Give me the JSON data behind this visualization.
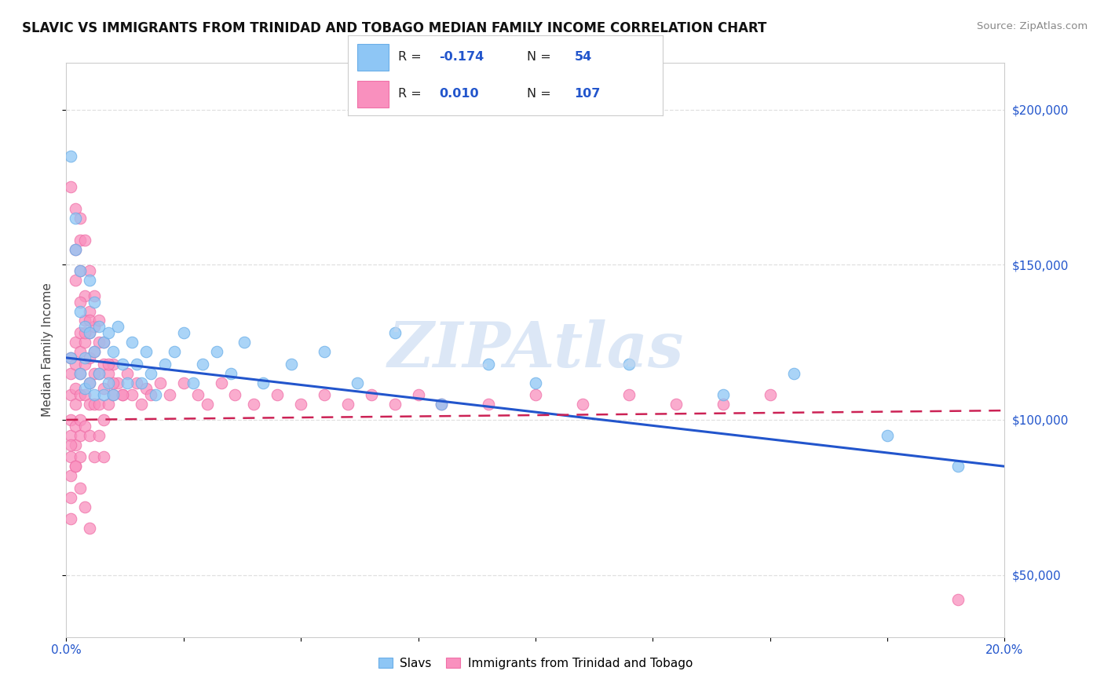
{
  "title": "SLAVIC VS IMMIGRANTS FROM TRINIDAD AND TOBAGO MEDIAN FAMILY INCOME CORRELATION CHART",
  "source": "Source: ZipAtlas.com",
  "ylabel": "Median Family Income",
  "xlim": [
    0.0,
    0.2
  ],
  "ylim": [
    30000,
    215000
  ],
  "xtick_positions": [
    0.0,
    0.025,
    0.05,
    0.075,
    0.1,
    0.125,
    0.15,
    0.175,
    0.2
  ],
  "xtick_labels_shown": {
    "0.0": "0.0%",
    "0.20": "20.0%"
  },
  "yticks": [
    50000,
    100000,
    150000,
    200000
  ],
  "ytick_labels": [
    "$50,000",
    "$100,000",
    "$150,000",
    "$200,000"
  ],
  "watermark": "ZIPAtlas",
  "legend_R1": "-0.174",
  "legend_N1": "54",
  "legend_R2": "0.010",
  "legend_N2": "107",
  "series1_name": "Slavs",
  "series2_name": "Immigrants from Trinidad and Tobago",
  "series1_color": "#8ec6f5",
  "series2_color": "#f990be",
  "series1_edge": "#6aaee8",
  "series2_edge": "#f070a8",
  "trend1_color": "#2255cc",
  "trend2_color": "#cc2255",
  "background_color": "#ffffff",
  "grid_color": "#dddddd",
  "watermark_color": "#c5d8f0",
  "slavs_x": [
    0.001,
    0.001,
    0.002,
    0.002,
    0.003,
    0.003,
    0.003,
    0.004,
    0.004,
    0.004,
    0.005,
    0.005,
    0.005,
    0.006,
    0.006,
    0.006,
    0.007,
    0.007,
    0.008,
    0.008,
    0.009,
    0.009,
    0.01,
    0.01,
    0.011,
    0.012,
    0.013,
    0.014,
    0.015,
    0.016,
    0.017,
    0.018,
    0.019,
    0.021,
    0.023,
    0.025,
    0.027,
    0.029,
    0.032,
    0.035,
    0.038,
    0.042,
    0.048,
    0.055,
    0.062,
    0.07,
    0.08,
    0.09,
    0.1,
    0.12,
    0.14,
    0.155,
    0.175,
    0.19
  ],
  "slavs_y": [
    185000,
    120000,
    165000,
    155000,
    148000,
    135000,
    115000,
    130000,
    120000,
    110000,
    145000,
    128000,
    112000,
    138000,
    122000,
    108000,
    130000,
    115000,
    125000,
    108000,
    128000,
    112000,
    122000,
    108000,
    130000,
    118000,
    112000,
    125000,
    118000,
    112000,
    122000,
    115000,
    108000,
    118000,
    122000,
    128000,
    112000,
    118000,
    122000,
    115000,
    125000,
    112000,
    118000,
    122000,
    112000,
    128000,
    105000,
    118000,
    112000,
    118000,
    108000,
    115000,
    95000,
    85000
  ],
  "trinidad_x": [
    0.001,
    0.001,
    0.001,
    0.001,
    0.001,
    0.001,
    0.001,
    0.001,
    0.001,
    0.002,
    0.002,
    0.002,
    0.002,
    0.002,
    0.002,
    0.002,
    0.003,
    0.003,
    0.003,
    0.003,
    0.003,
    0.003,
    0.003,
    0.004,
    0.004,
    0.004,
    0.004,
    0.004,
    0.005,
    0.005,
    0.005,
    0.005,
    0.005,
    0.005,
    0.006,
    0.006,
    0.006,
    0.006,
    0.007,
    0.007,
    0.007,
    0.008,
    0.008,
    0.008,
    0.009,
    0.009,
    0.01,
    0.01,
    0.011,
    0.012,
    0.013,
    0.014,
    0.015,
    0.016,
    0.017,
    0.018,
    0.02,
    0.022,
    0.025,
    0.028,
    0.03,
    0.033,
    0.036,
    0.04,
    0.045,
    0.05,
    0.055,
    0.06,
    0.065,
    0.07,
    0.075,
    0.08,
    0.09,
    0.1,
    0.11,
    0.12,
    0.13,
    0.14,
    0.15,
    0.002,
    0.003,
    0.004,
    0.005,
    0.001,
    0.002,
    0.003,
    0.002,
    0.003,
    0.004,
    0.001,
    0.002,
    0.003,
    0.004,
    0.005,
    0.006,
    0.007,
    0.008,
    0.003,
    0.004,
    0.005,
    0.006,
    0.007,
    0.008,
    0.009,
    0.01,
    0.012,
    0.19
  ],
  "trinidad_y": [
    120000,
    115000,
    108000,
    100000,
    95000,
    88000,
    82000,
    75000,
    68000,
    125000,
    118000,
    110000,
    105000,
    98000,
    92000,
    85000,
    128000,
    122000,
    115000,
    108000,
    100000,
    95000,
    88000,
    132000,
    125000,
    118000,
    108000,
    98000,
    135000,
    128000,
    120000,
    112000,
    105000,
    95000,
    130000,
    122000,
    115000,
    105000,
    125000,
    115000,
    105000,
    118000,
    110000,
    100000,
    115000,
    105000,
    118000,
    108000,
    112000,
    108000,
    115000,
    108000,
    112000,
    105000,
    110000,
    108000,
    112000,
    108000,
    112000,
    108000,
    105000,
    112000,
    108000,
    105000,
    108000,
    105000,
    108000,
    105000,
    108000,
    105000,
    108000,
    105000,
    105000,
    108000,
    105000,
    108000,
    105000,
    105000,
    108000,
    155000,
    148000,
    140000,
    132000,
    175000,
    168000,
    158000,
    145000,
    138000,
    128000,
    92000,
    85000,
    78000,
    72000,
    65000,
    88000,
    95000,
    88000,
    165000,
    158000,
    148000,
    140000,
    132000,
    125000,
    118000,
    112000,
    108000,
    42000
  ]
}
